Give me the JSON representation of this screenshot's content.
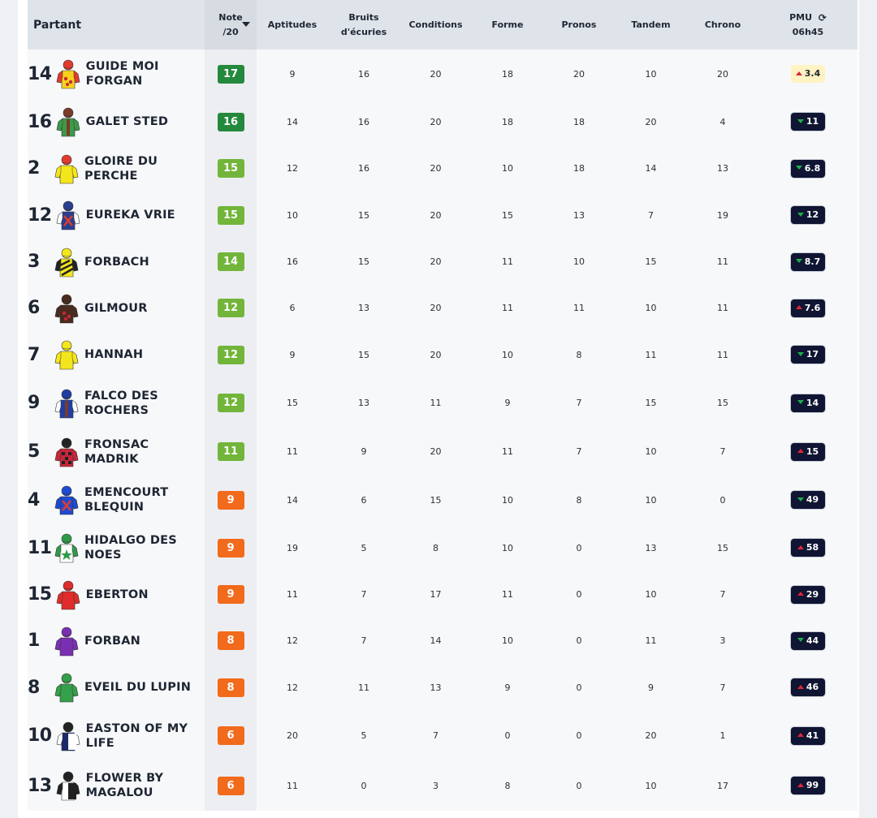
{
  "header": {
    "partant": "Partant",
    "note": "Note",
    "note_sub": "/20",
    "aptitudes": "Aptitudes",
    "bruits_line1": "Bruits",
    "bruits_line2": "d'écuries",
    "conditions": "Conditions",
    "forme": "Forme",
    "pronos": "Pronos",
    "tandem": "Tandem",
    "chrono": "Chrono",
    "pmu": "PMU",
    "pmu_time": "06h45",
    "refresh_icon": "refresh-icon"
  },
  "colors": {
    "score_dark_green": "#24893c",
    "score_light_green": "#72b53a",
    "score_orange": "#f26a1b",
    "odds_dark": "#0f1532",
    "odds_highlight": "#fff3c4",
    "arrow_up": "#e0263a",
    "arrow_down": "#1fae4b"
  },
  "rows": [
    {
      "num": "14",
      "name": [
        "GUIDE MOI",
        "FORGAN"
      ],
      "note": "17",
      "tier": "dark",
      "apt": "9",
      "bruits": "16",
      "cond": "20",
      "forme": "18",
      "pronos": "20",
      "tandem": "10",
      "chrono": "20",
      "pmu": "3.4",
      "dir": "up",
      "highlight": true,
      "silk": {
        "body": "#f7d21a",
        "sleeves": "#e23b2e",
        "cap": "#e23b2e",
        "pattern": "spots"
      }
    },
    {
      "num": "16",
      "name": [
        "GALET STED"
      ],
      "note": "16",
      "tier": "dark",
      "apt": "14",
      "bruits": "16",
      "cond": "20",
      "forme": "18",
      "pronos": "18",
      "tandem": "20",
      "chrono": "4",
      "pmu": "11",
      "dir": "down",
      "highlight": false,
      "silk": {
        "body": "#3d9a48",
        "sleeves": "#3d9a48",
        "cap": "#7a3b2a",
        "pattern": "stripe"
      }
    },
    {
      "num": "2",
      "name": [
        "GLOIRE DU PERCHE"
      ],
      "note": "15",
      "tier": "light",
      "apt": "12",
      "bruits": "16",
      "cond": "20",
      "forme": "10",
      "pronos": "18",
      "tandem": "14",
      "chrono": "13",
      "pmu": "6.8",
      "dir": "down",
      "highlight": false,
      "silk": {
        "body": "#f4e61c",
        "sleeves": "#f4e61c",
        "cap": "#e23b2e",
        "pattern": "plain"
      }
    },
    {
      "num": "12",
      "name": [
        "EUREKA VRIE"
      ],
      "note": "15",
      "tier": "light",
      "apt": "10",
      "bruits": "15",
      "cond": "20",
      "forme": "15",
      "pronos": "13",
      "tandem": "7",
      "chrono": "19",
      "pmu": "12",
      "dir": "down",
      "highlight": false,
      "silk": {
        "body": "#2a3f8f",
        "sleeves": "#ffffff",
        "cap": "#2a3f8f",
        "pattern": "cross"
      }
    },
    {
      "num": "3",
      "name": [
        "FORBACH"
      ],
      "note": "14",
      "tier": "light",
      "apt": "16",
      "bruits": "15",
      "cond": "20",
      "forme": "11",
      "pronos": "10",
      "tandem": "15",
      "chrono": "11",
      "pmu": "8.7",
      "dir": "down",
      "highlight": false,
      "silk": {
        "body": "#f4e61c",
        "sleeves": "#222222",
        "cap": "#f4e61c",
        "pattern": "diag"
      }
    },
    {
      "num": "6",
      "name": [
        "GILMOUR"
      ],
      "note": "12",
      "tier": "light",
      "apt": "6",
      "bruits": "13",
      "cond": "20",
      "forme": "11",
      "pronos": "11",
      "tandem": "10",
      "chrono": "11",
      "pmu": "7.6",
      "dir": "up",
      "highlight": false,
      "silk": {
        "body": "#4a2b1f",
        "sleeves": "#4a2b1f",
        "cap": "#4a2b1f",
        "pattern": "spots"
      }
    },
    {
      "num": "7",
      "name": [
        "HANNAH"
      ],
      "note": "12",
      "tier": "light",
      "apt": "9",
      "bruits": "15",
      "cond": "20",
      "forme": "10",
      "pronos": "8",
      "tandem": "11",
      "chrono": "11",
      "pmu": "17",
      "dir": "down",
      "highlight": false,
      "silk": {
        "body": "#f4e61c",
        "sleeves": "#f4e61c",
        "cap": "#f4e61c",
        "pattern": "plain"
      }
    },
    {
      "num": "9",
      "name": [
        "FALCO DES",
        "ROCHERS"
      ],
      "note": "12",
      "tier": "light",
      "apt": "15",
      "bruits": "13",
      "cond": "11",
      "forme": "9",
      "pronos": "7",
      "tandem": "15",
      "chrono": "15",
      "pmu": "14",
      "dir": "down",
      "highlight": false,
      "silk": {
        "body": "#1f3fa6",
        "sleeves": "#ffffff",
        "cap": "#1f3fa6",
        "pattern": "stripe"
      }
    },
    {
      "num": "5",
      "name": [
        "FRONSAC MADRIK"
      ],
      "note": "11",
      "tier": "light",
      "apt": "11",
      "bruits": "9",
      "cond": "20",
      "forme": "11",
      "pronos": "7",
      "tandem": "10",
      "chrono": "7",
      "pmu": "15",
      "dir": "up",
      "highlight": false,
      "silk": {
        "body": "#c8263a",
        "sleeves": "#c8263a",
        "cap": "#222222",
        "pattern": "check"
      }
    },
    {
      "num": "4",
      "name": [
        "EMENCOURT",
        "BLEQUIN"
      ],
      "note": "9",
      "tier": "orange",
      "apt": "14",
      "bruits": "6",
      "cond": "15",
      "forme": "10",
      "pronos": "8",
      "tandem": "10",
      "chrono": "0",
      "pmu": "49",
      "dir": "down",
      "highlight": false,
      "silk": {
        "body": "#1d4bd1",
        "sleeves": "#1d4bd1",
        "cap": "#1d4bd1",
        "pattern": "cross"
      }
    },
    {
      "num": "11",
      "name": [
        "HIDALGO DES NOES"
      ],
      "note": "9",
      "tier": "orange",
      "apt": "19",
      "bruits": "5",
      "cond": "8",
      "forme": "10",
      "pronos": "0",
      "tandem": "13",
      "chrono": "15",
      "pmu": "58",
      "dir": "up",
      "highlight": false,
      "silk": {
        "body": "#ffffff",
        "sleeves": "#2f9a48",
        "cap": "#2f9a48",
        "pattern": "star"
      }
    },
    {
      "num": "15",
      "name": [
        "EBERTON"
      ],
      "note": "9",
      "tier": "orange",
      "apt": "11",
      "bruits": "7",
      "cond": "17",
      "forme": "11",
      "pronos": "0",
      "tandem": "10",
      "chrono": "7",
      "pmu": "29",
      "dir": "up",
      "highlight": false,
      "silk": {
        "body": "#e02c2c",
        "sleeves": "#e02c2c",
        "cap": "#e02c2c",
        "pattern": "plain"
      }
    },
    {
      "num": "1",
      "name": [
        "FORBAN"
      ],
      "note": "8",
      "tier": "orange",
      "apt": "12",
      "bruits": "7",
      "cond": "14",
      "forme": "10",
      "pronos": "0",
      "tandem": "11",
      "chrono": "3",
      "pmu": "44",
      "dir": "down",
      "highlight": false,
      "silk": {
        "body": "#7a2fb3",
        "sleeves": "#7a2fb3",
        "cap": "#7a2fb3",
        "pattern": "plain"
      }
    },
    {
      "num": "8",
      "name": [
        "EVEIL DU LUPIN"
      ],
      "note": "8",
      "tier": "orange",
      "apt": "12",
      "bruits": "11",
      "cond": "13",
      "forme": "9",
      "pronos": "0",
      "tandem": "9",
      "chrono": "7",
      "pmu": "46",
      "dir": "up",
      "highlight": false,
      "silk": {
        "body": "#34a04a",
        "sleeves": "#34a04a",
        "cap": "#34a04a",
        "pattern": "plain"
      }
    },
    {
      "num": "10",
      "name": [
        "EASTON OF MY",
        "LIFE"
      ],
      "note": "6",
      "tier": "orange",
      "apt": "20",
      "bruits": "5",
      "cond": "7",
      "forme": "0",
      "pronos": "0",
      "tandem": "20",
      "chrono": "1",
      "pmu": "41",
      "dir": "up",
      "highlight": false,
      "silk": {
        "body": "#1b2a6b",
        "sleeves": "#ffffff",
        "cap": "#222222",
        "pattern": "halves"
      }
    },
    {
      "num": "13",
      "name": [
        "FLOWER BY",
        "MAGALOU"
      ],
      "note": "6",
      "tier": "orange",
      "apt": "11",
      "bruits": "0",
      "cond": "3",
      "forme": "8",
      "pronos": "0",
      "tandem": "10",
      "chrono": "17",
      "pmu": "99",
      "dir": "up",
      "highlight": false,
      "silk": {
        "body": "#ffffff",
        "sleeves": "#222222",
        "cap": "#222222",
        "pattern": "halves"
      }
    }
  ]
}
